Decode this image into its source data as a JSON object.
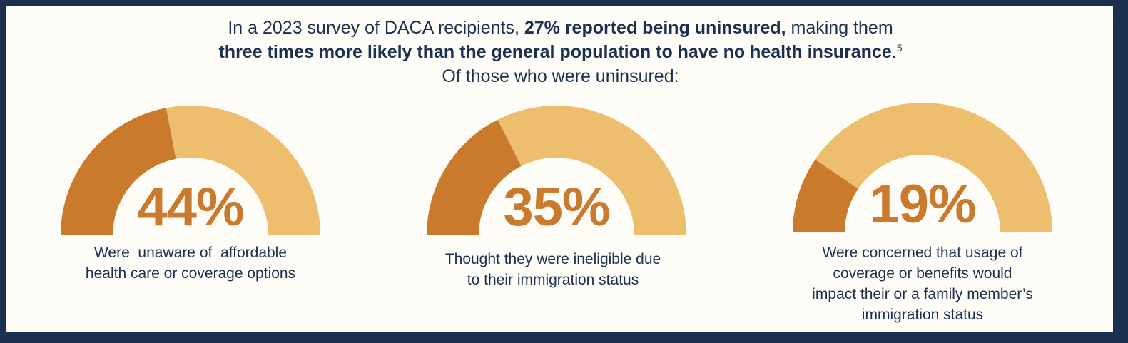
{
  "headline": {
    "line1_a": "In a 2023 survey of DACA recipients, ",
    "line1_b": "27% reported being uninsured,",
    "line1_c": " making them",
    "line2": "three times more likely than the general population to have no health insurance",
    "line2_tail": ".",
    "footnote": "5",
    "line3": "Of those who were uninsured:"
  },
  "colors": {
    "value": "#c97a2c",
    "remainder": "#edbe6e",
    "text": "#1b2f4e",
    "frame": "#1b2f4e"
  },
  "chart_data": [
    {
      "type": "gauge",
      "value": 44,
      "max": 100,
      "label": "44%",
      "caption": [
        "Were  unaware of  affordable",
        "health care or coverage options"
      ]
    },
    {
      "type": "gauge",
      "value": 35,
      "max": 100,
      "label": "35%",
      "caption": [
        "Thought they were ineligible due",
        "to their immigration status"
      ]
    },
    {
      "type": "gauge",
      "value": 19,
      "max": 100,
      "label": "19%",
      "caption": [
        "Were concerned that usage of",
        "coverage or benefits would",
        "impact their or a family member’s",
        "immigration status"
      ]
    }
  ]
}
